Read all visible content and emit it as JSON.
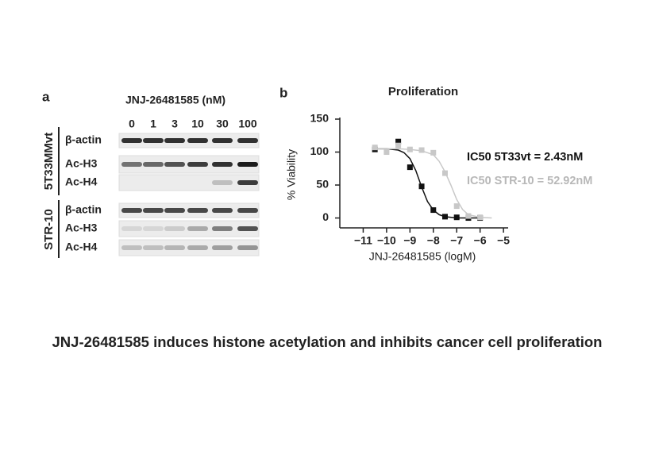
{
  "panel_a": {
    "label": "a",
    "compound": "JNJ-26481585 (nM)",
    "concentrations": [
      "0",
      "1",
      "3",
      "10",
      "30",
      "100"
    ],
    "groups": [
      {
        "name": "5T33MMvt",
        "rows": [
          "β-actin",
          "Ac-H3",
          "Ac-H4"
        ]
      },
      {
        "name": "STR-10",
        "rows": [
          "β-actin",
          "Ac-H3",
          "Ac-H4"
        ]
      }
    ]
  },
  "chart_data": {
    "type": "scatter",
    "panel_label": "b",
    "title": "Proliferation",
    "y_label": "% Viability",
    "x_label": "JNJ-26481585 (logM)",
    "annotations": [
      {
        "text": "IC50 5T33vt = 2.43nM",
        "color": "#111111"
      },
      {
        "text": "IC50 STR-10 = 52.92nM",
        "color": "#b8b8b8"
      }
    ],
    "xlim": [
      -12,
      -4.8
    ],
    "ylim": [
      -15,
      150
    ],
    "xticks": [
      {
        "value": -11,
        "label": "−11"
      },
      {
        "value": -10,
        "label": "−10"
      },
      {
        "value": -9,
        "label": "−9"
      },
      {
        "value": -8,
        "label": "−8"
      },
      {
        "value": -7,
        "label": "−7"
      },
      {
        "value": -6,
        "label": "−6"
      },
      {
        "value": -5,
        "label": "−5"
      }
    ],
    "yticks": [
      0,
      50,
      100,
      150
    ],
    "series": [
      {
        "color": "#111111",
        "x": [
          -10.5,
          -9.5,
          -9,
          -8.5,
          -8,
          -7.5,
          -7,
          -6.5,
          -6
        ],
        "values": [
          104,
          116,
          77,
          48,
          12,
          2,
          1,
          0,
          0
        ],
        "fit": {
          "x": [
            -10.5,
            -10,
            -9.5,
            -9.25,
            -9,
            -8.75,
            -8.5,
            -8.25,
            -8,
            -7.75,
            -7.5,
            -7,
            -6.5,
            -6
          ],
          "values": [
            105,
            105,
            103,
            99,
            90,
            72,
            47,
            25,
            12,
            5,
            2,
            0,
            0,
            0
          ]
        }
      },
      {
        "color": "#c8c8c8",
        "x": [
          -10.5,
          -10,
          -9.5,
          -9,
          -8.5,
          -8,
          -7.5,
          -7,
          -6.5,
          -6
        ],
        "values": [
          107,
          100,
          110,
          104,
          103,
          99,
          68,
          18,
          3,
          1
        ],
        "fit": {
          "x": [
            -10.5,
            -10,
            -9.5,
            -9,
            -8.5,
            -8,
            -7.75,
            -7.5,
            -7.25,
            -7,
            -6.75,
            -6.5,
            -6,
            -5.5
          ],
          "values": [
            105,
            105,
            105,
            104,
            102,
            96,
            86,
            70,
            50,
            28,
            13,
            5,
            1,
            0
          ]
        }
      }
    ]
  },
  "caption": "JNJ-26481585 induces histone acetylation and inhibits cancer cell proliferation"
}
